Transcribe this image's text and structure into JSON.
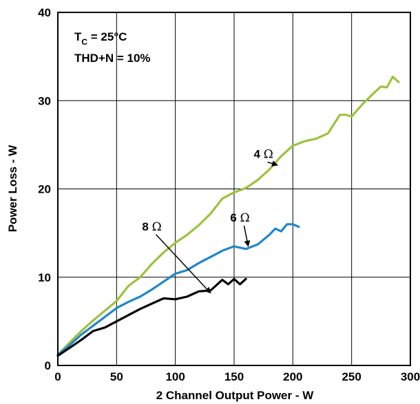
{
  "chart_data": {
    "type": "line",
    "title": "",
    "xlabel": "2 Channel Output Power - W",
    "ylabel": "Power Loss - W",
    "xlim": [
      0,
      300
    ],
    "ylim": [
      0,
      40
    ],
    "xticks": [
      0,
      50,
      100,
      150,
      200,
      250,
      300
    ],
    "yticks": [
      0,
      10,
      20,
      30,
      40
    ],
    "grid": true,
    "conditions": {
      "tc_prefix": "T",
      "tc_sub": "C",
      "tc_suffix": " = 25°C",
      "thd": "THD+N = 10%"
    },
    "series": [
      {
        "name": "4 Ω",
        "label_num": "4",
        "label_unit": "Ω",
        "color": "#9bc23c",
        "label_at": [
          175,
          23.5
        ],
        "arrow_to": [
          187,
          22.7
        ],
        "points": [
          [
            0,
            1.2
          ],
          [
            10,
            2.6
          ],
          [
            20,
            3.9
          ],
          [
            30,
            5.1
          ],
          [
            40,
            6.2
          ],
          [
            50,
            7.3
          ],
          [
            60,
            9.0
          ],
          [
            70,
            10.0
          ],
          [
            80,
            11.5
          ],
          [
            90,
            12.8
          ],
          [
            100,
            13.9
          ],
          [
            110,
            14.8
          ],
          [
            120,
            15.9
          ],
          [
            130,
            17.2
          ],
          [
            140,
            18.9
          ],
          [
            150,
            19.6
          ],
          [
            160,
            20.1
          ],
          [
            170,
            21.0
          ],
          [
            180,
            22.2
          ],
          [
            190,
            23.7
          ],
          [
            200,
            24.9
          ],
          [
            210,
            25.4
          ],
          [
            220,
            25.7
          ],
          [
            230,
            26.3
          ],
          [
            240,
            28.4
          ],
          [
            245,
            28.4
          ],
          [
            250,
            28.2
          ],
          [
            260,
            29.7
          ],
          [
            270,
            31.0
          ],
          [
            275,
            31.6
          ],
          [
            280,
            31.5
          ],
          [
            285,
            32.7
          ],
          [
            290,
            32.1
          ]
        ]
      },
      {
        "name": "6 Ω",
        "label_num": "6",
        "label_unit": "Ω",
        "color": "#1d86c8",
        "label_at": [
          155,
          16.3
        ],
        "arrow_to": [
          162,
          13.5
        ],
        "points": [
          [
            0,
            1.2
          ],
          [
            10,
            2.3
          ],
          [
            20,
            3.5
          ],
          [
            30,
            4.5
          ],
          [
            40,
            5.5
          ],
          [
            50,
            6.5
          ],
          [
            60,
            7.2
          ],
          [
            70,
            7.8
          ],
          [
            80,
            8.6
          ],
          [
            90,
            9.5
          ],
          [
            100,
            10.4
          ],
          [
            110,
            10.8
          ],
          [
            120,
            11.6
          ],
          [
            130,
            12.3
          ],
          [
            140,
            13.0
          ],
          [
            150,
            13.5
          ],
          [
            160,
            13.2
          ],
          [
            170,
            13.7
          ],
          [
            180,
            14.8
          ],
          [
            185,
            15.5
          ],
          [
            190,
            15.2
          ],
          [
            195,
            16.0
          ],
          [
            200,
            16.0
          ],
          [
            205,
            15.7
          ]
        ]
      },
      {
        "name": "8 Ω",
        "label_num": "8",
        "label_unit": "Ω",
        "color": "#000000",
        "label_at": [
          80,
          15.3
        ],
        "arrow_to": [
          130,
          8.2
        ],
        "points": [
          [
            0,
            1.1
          ],
          [
            10,
            2.0
          ],
          [
            20,
            2.9
          ],
          [
            30,
            3.9
          ],
          [
            40,
            4.3
          ],
          [
            50,
            5.0
          ],
          [
            60,
            5.7
          ],
          [
            70,
            6.4
          ],
          [
            80,
            7.0
          ],
          [
            90,
            7.6
          ],
          [
            100,
            7.5
          ],
          [
            110,
            7.8
          ],
          [
            120,
            8.4
          ],
          [
            130,
            8.5
          ],
          [
            140,
            9.7
          ],
          [
            145,
            9.2
          ],
          [
            150,
            9.8
          ],
          [
            155,
            9.2
          ],
          [
            160,
            9.8
          ]
        ]
      }
    ]
  }
}
